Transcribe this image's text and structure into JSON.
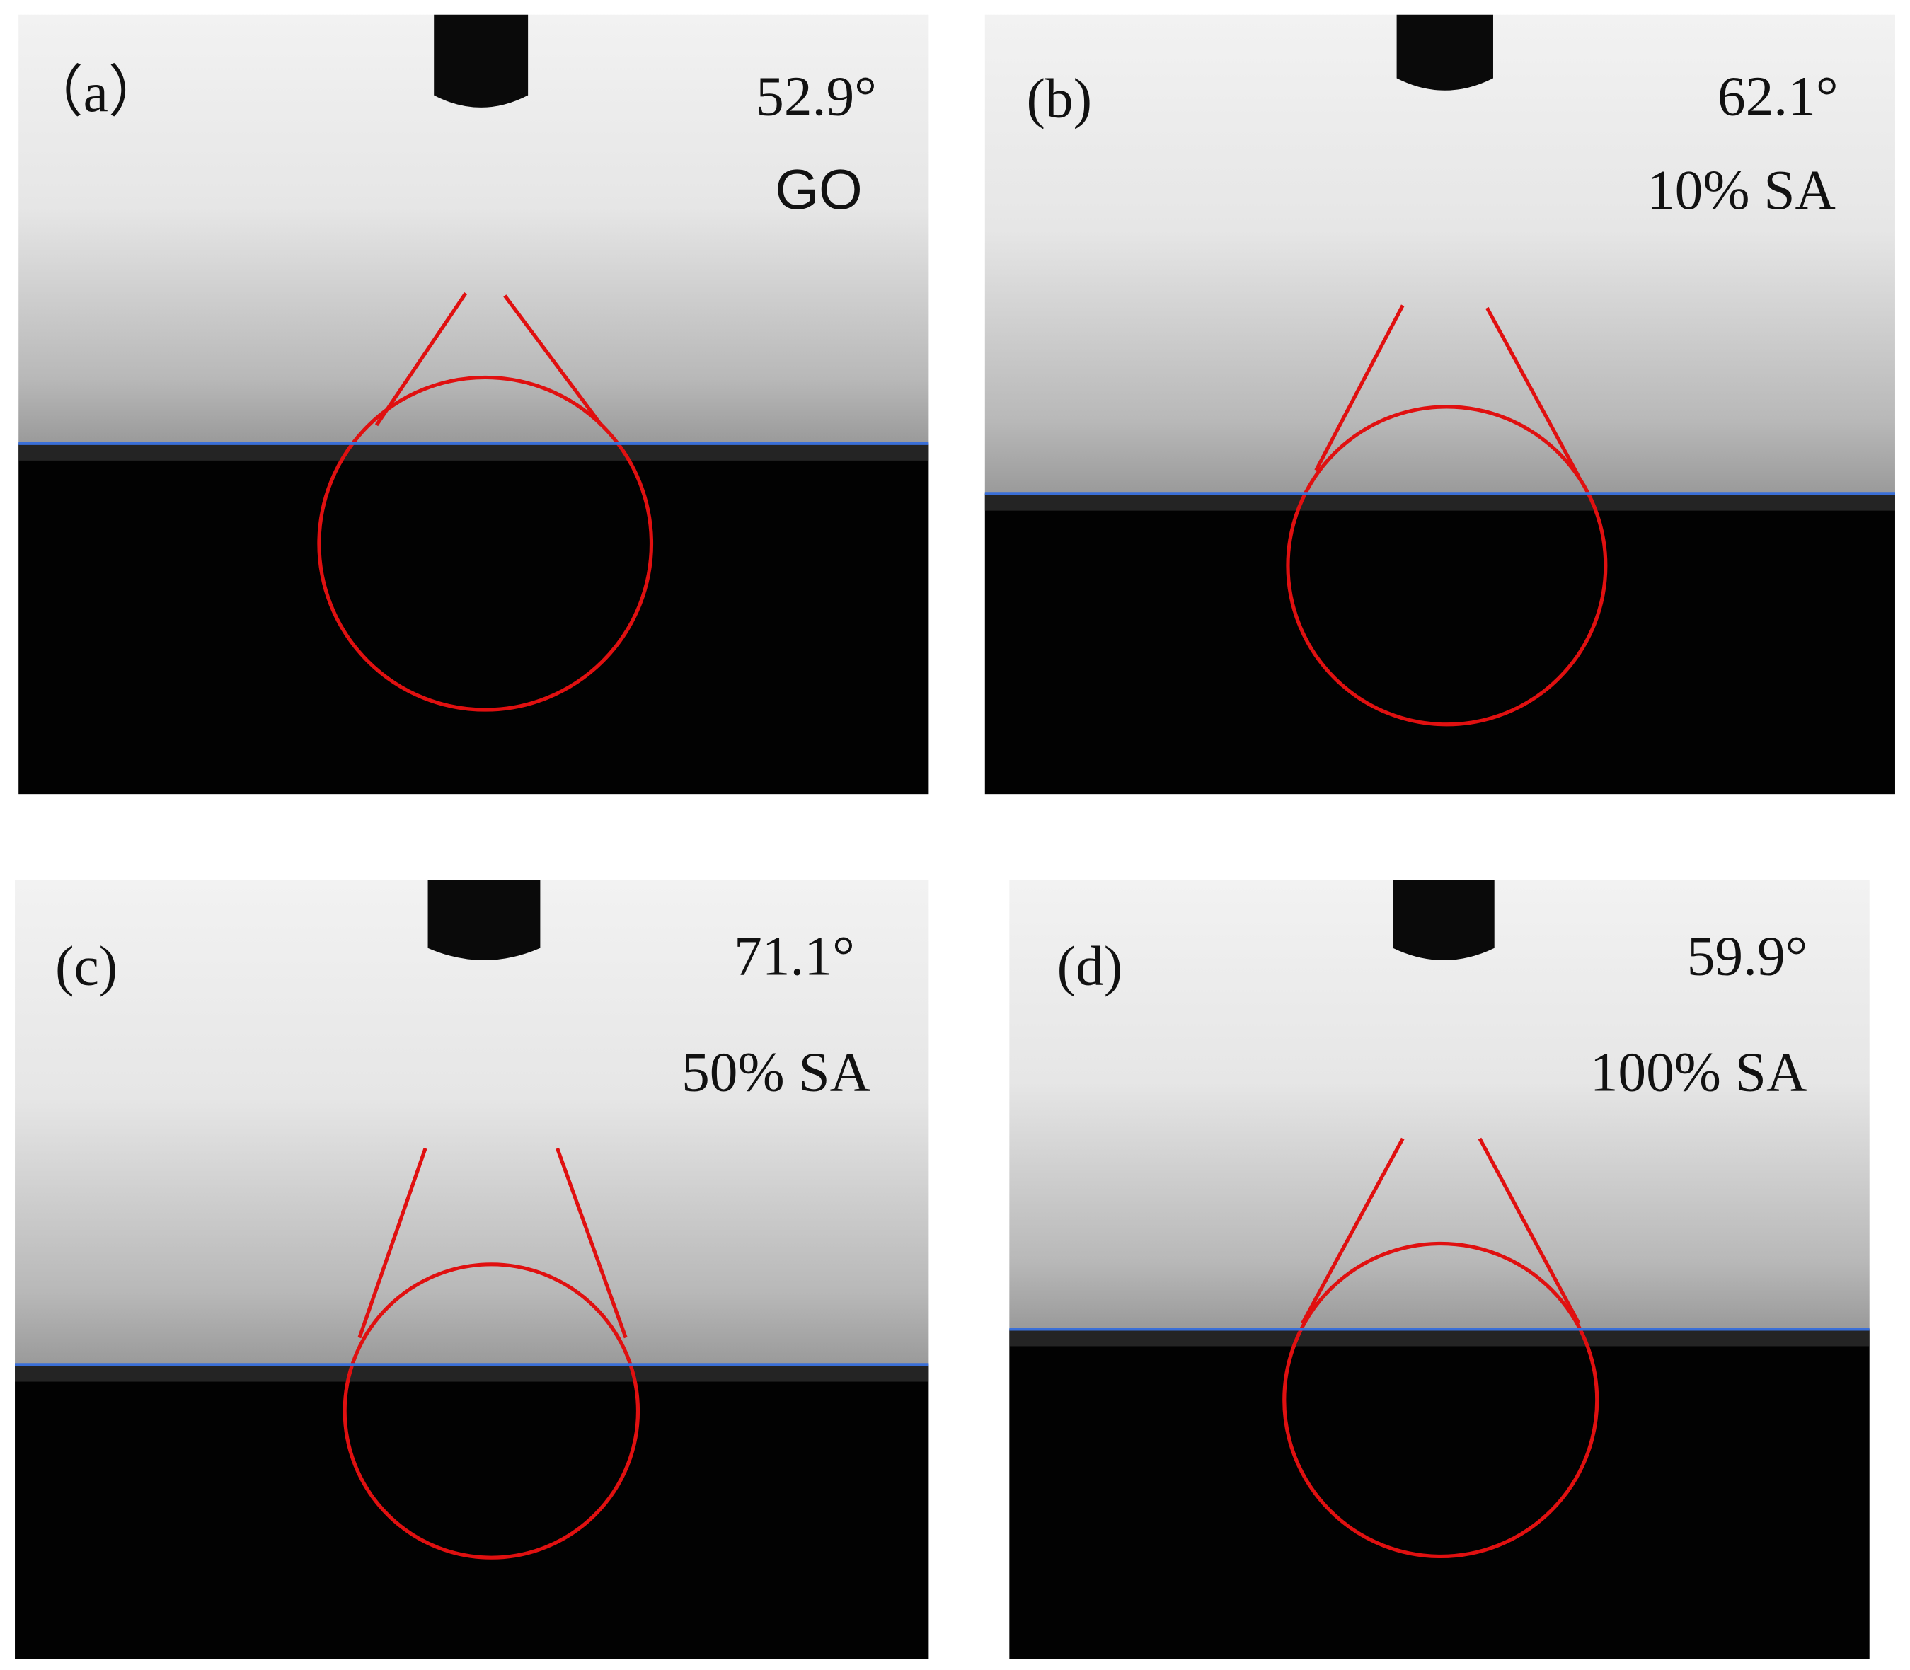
{
  "panels": [
    {
      "label": "（a）",
      "angle": "52.9°",
      "sample": "GO"
    },
    {
      "label": "(b)",
      "angle": "62.1°",
      "sample": "10% SA"
    },
    {
      "label": "(c)",
      "angle": "71.1°",
      "sample": "50% SA"
    },
    {
      "label": "(d)",
      "angle": "59.9°",
      "sample": "100% SA"
    }
  ]
}
